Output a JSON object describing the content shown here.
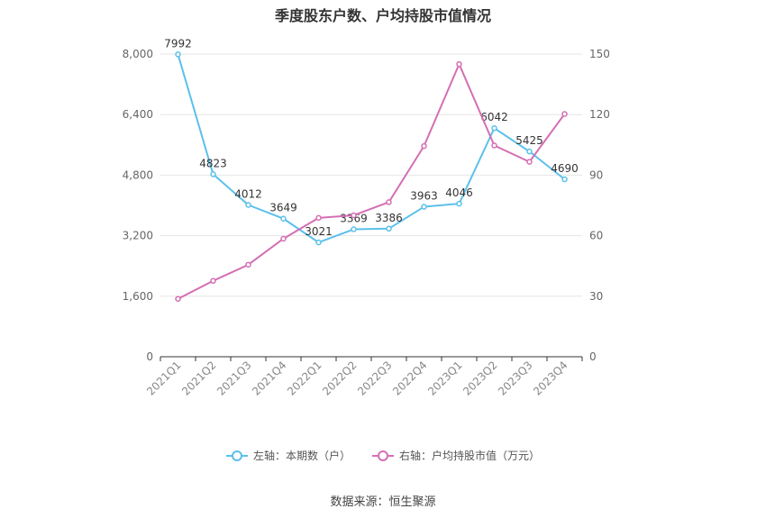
{
  "chart_data": {
    "type": "line",
    "title": "季度股东户数、户均持股市值情况",
    "categories": [
      "2021Q1",
      "2021Q2",
      "2021Q3",
      "2021Q4",
      "2022Q1",
      "2022Q2",
      "2022Q3",
      "2022Q4",
      "2023Q1",
      "2023Q2",
      "2023Q3",
      "2023Q4"
    ],
    "series": [
      {
        "name": "左轴：本期数（户）",
        "axis": "left",
        "color": "#5bc0eb",
        "values": [
          7992,
          4823,
          4012,
          3649,
          3021,
          3369,
          3386,
          3963,
          4046,
          6042,
          5425,
          4690
        ],
        "show_labels": true
      },
      {
        "name": "右轴：户均持股市值（万元）",
        "axis": "right",
        "color": "#d46fb3",
        "values": [
          28.7,
          37.6,
          45.6,
          58.5,
          68.8,
          70.1,
          76.6,
          104.4,
          145.0,
          104.7,
          96.6,
          120.3
        ],
        "show_labels": false
      }
    ],
    "left_axis": {
      "min": 0,
      "max": 8000,
      "ticks": [
        0,
        1600,
        3200,
        4800,
        6400,
        8000
      ],
      "tick_labels": [
        "0",
        "1,600",
        "3,200",
        "4,800",
        "6,400",
        "8,000"
      ]
    },
    "right_axis": {
      "min": 0,
      "max": 150,
      "ticks": [
        0,
        30,
        60,
        90,
        120,
        150
      ],
      "tick_labels": [
        "0",
        "30",
        "60",
        "90",
        "120",
        "150"
      ]
    },
    "grid": true,
    "legend_position": "bottom"
  },
  "source": "数据来源：恒生聚源"
}
